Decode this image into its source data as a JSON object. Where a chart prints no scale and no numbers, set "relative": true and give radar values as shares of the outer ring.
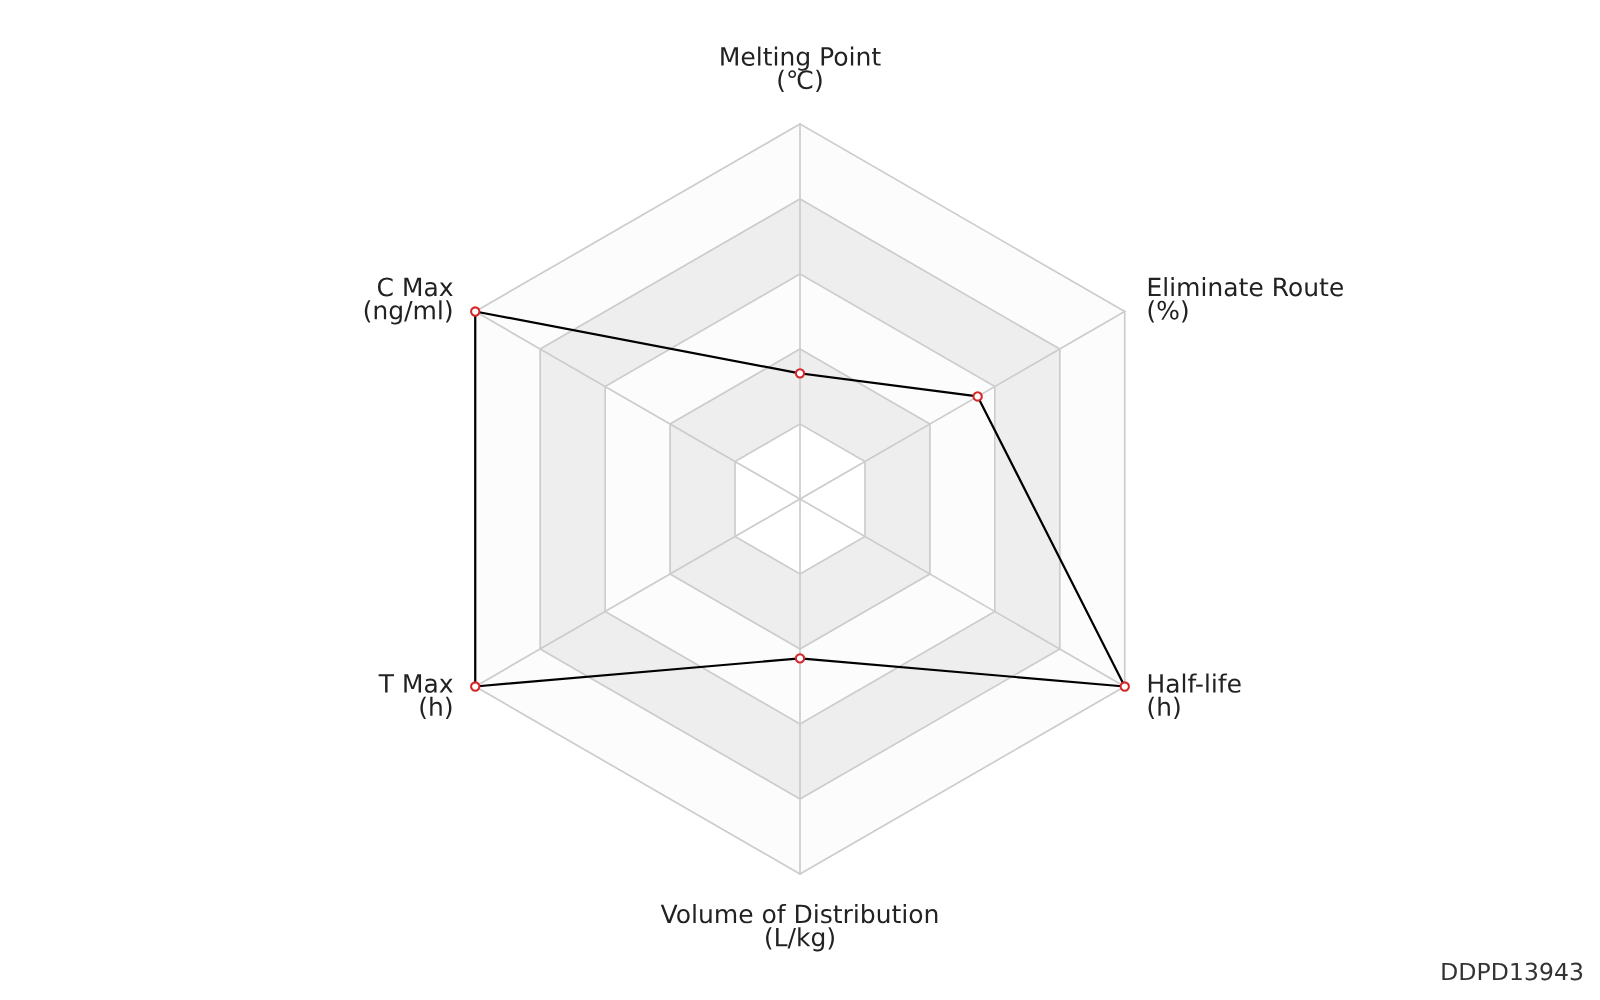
{
  "chart_data": {
    "type": "radar",
    "relative": true,
    "grid": true,
    "marker": "circle",
    "line_style": "solid",
    "categories": [
      "Melting Point\n(℃)",
      "Eliminate Route\n(%)",
      "Half-life\n(h)",
      "Volume of Distribution\n(L/kg)",
      "T Max\n(h)",
      "C Max\n(ng/ml)"
    ],
    "series": [
      {
        "color": "#000000",
        "colors": [
          "#d62728",
          "#d62728",
          "#d62728",
          "#d62728",
          "#d62728",
          "#d62728"
        ],
        "values": [
          0.335,
          0.547,
          1,
          0.425,
          1,
          1
        ]
      }
    ],
    "annotations": [
      "DDPD13943"
    ]
  }
}
